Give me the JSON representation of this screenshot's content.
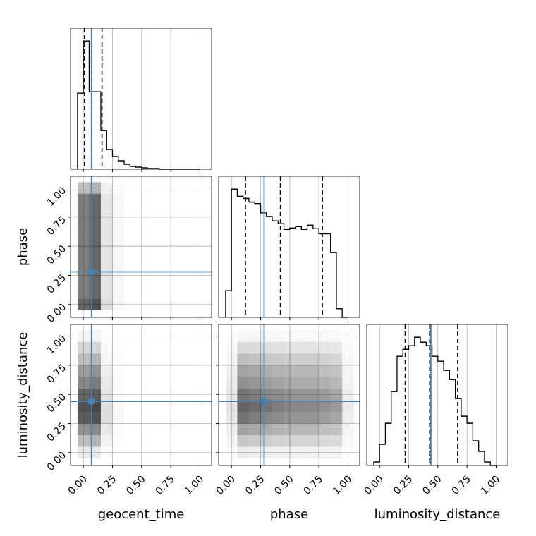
{
  "chart_data": {
    "type": "corner",
    "parameters": [
      "geocent_time",
      "phase",
      "luminosity_distance"
    ],
    "truths": [
      0.07,
      0.28,
      0.44
    ],
    "truth_color": "#4682b4",
    "lim": [
      -0.11,
      1.1
    ],
    "ticks": [
      {
        "value": 0,
        "label": "0.00"
      },
      {
        "value": 0.25,
        "label": "0.25"
      },
      {
        "value": 0.5,
        "label": "0.50"
      },
      {
        "value": 0.75,
        "label": "0.75"
      },
      {
        "value": 1,
        "label": "1.00"
      }
    ],
    "grid": true,
    "hists": [
      {
        "bins": [
          -0.05,
          0,
          0.05,
          0.1,
          0.15,
          0.2,
          0.25,
          0.3,
          0.35,
          0.4,
          0.45,
          0.5,
          0.55,
          0.6,
          0.65,
          0.7,
          0.75,
          0.8,
          0.85,
          0.9,
          0.95,
          1.0
        ],
        "counts": [
          108,
          182,
          110,
          110,
          55,
          28,
          18,
          12,
          7,
          4,
          3,
          2,
          1,
          1,
          0,
          0,
          0,
          0,
          0,
          0,
          0
        ],
        "quantiles": [
          0.01,
          0.07,
          0.16
        ]
      },
      {
        "bins": [
          -0.05,
          0,
          0.05,
          0.1,
          0.15,
          0.2,
          0.25,
          0.3,
          0.35,
          0.4,
          0.45,
          0.5,
          0.55,
          0.6,
          0.65,
          0.7,
          0.75,
          0.8,
          0.85,
          0.9,
          0.95,
          1.0
        ],
        "counts": [
          37,
          178,
          168,
          165,
          160,
          158,
          145,
          140,
          134,
          130,
          122,
          124,
          126,
          122,
          128,
          123,
          116,
          116,
          90,
          12,
          0
        ],
        "quantiles": [
          0.12,
          0.42,
          0.78
        ]
      },
      {
        "bins": [
          -0.05,
          0,
          0.05,
          0.1,
          0.15,
          0.2,
          0.25,
          0.3,
          0.35,
          0.4,
          0.45,
          0.5,
          0.55,
          0.6,
          0.65,
          0.7,
          0.75,
          0.8,
          0.85,
          0.9,
          0.95,
          1.0
        ],
        "counts": [
          5,
          30,
          60,
          105,
          155,
          165,
          170,
          182,
          175,
          170,
          155,
          148,
          135,
          122,
          95,
          70,
          60,
          35,
          20,
          5,
          0
        ],
        "quantiles": [
          0.22,
          0.43,
          0.67
        ]
      }
    ],
    "panels2d": [
      {
        "edges": [
          -0.05,
          0.05,
          0.15,
          0.25,
          0.35,
          0.45,
          0.55,
          0.65,
          0.75,
          0.85,
          0.95,
          1.05
        ],
        "density": [
          [
            0.7,
            0.8,
            0.15,
            0.03,
            0,
            0,
            0,
            0,
            0,
            0,
            0
          ],
          [
            0.6,
            0.7,
            0.12,
            0.03,
            0,
            0,
            0,
            0,
            0,
            0,
            0
          ],
          [
            0.6,
            0.7,
            0.12,
            0.03,
            0,
            0,
            0,
            0,
            0,
            0,
            0
          ],
          [
            0.6,
            0.7,
            0.12,
            0.03,
            0,
            0,
            0,
            0,
            0,
            0,
            0
          ],
          [
            0.6,
            0.7,
            0.12,
            0.03,
            0,
            0,
            0,
            0,
            0,
            0,
            0
          ],
          [
            0.6,
            0.7,
            0.12,
            0.03,
            0,
            0,
            0,
            0,
            0,
            0,
            0
          ],
          [
            0.6,
            0.7,
            0.12,
            0.03,
            0,
            0,
            0,
            0,
            0,
            0,
            0
          ],
          [
            0.6,
            0.7,
            0.12,
            0.03,
            0,
            0,
            0,
            0,
            0,
            0,
            0
          ],
          [
            0.6,
            0.7,
            0.12,
            0.03,
            0,
            0,
            0,
            0,
            0,
            0,
            0
          ],
          [
            0.6,
            0.7,
            0.12,
            0.03,
            0,
            0,
            0,
            0,
            0,
            0,
            0
          ],
          [
            0.3,
            0.35,
            0.06,
            0.01,
            0,
            0,
            0,
            0,
            0,
            0,
            0
          ]
        ]
      },
      {
        "edges": [
          -0.05,
          0.05,
          0.15,
          0.25,
          0.35,
          0.45,
          0.55,
          0.65,
          0.75,
          0.85,
          0.95,
          1.05
        ],
        "density": [
          [
            0.1,
            0.1,
            0.02,
            0,
            0,
            0,
            0,
            0,
            0,
            0,
            0
          ],
          [
            0.3,
            0.35,
            0.06,
            0.01,
            0,
            0,
            0,
            0,
            0,
            0,
            0
          ],
          [
            0.5,
            0.55,
            0.1,
            0.02,
            0,
            0,
            0,
            0,
            0,
            0,
            0
          ],
          [
            0.75,
            0.8,
            0.15,
            0.03,
            0,
            0,
            0,
            0,
            0,
            0,
            0
          ],
          [
            0.8,
            0.85,
            0.15,
            0.03,
            0,
            0,
            0,
            0,
            0,
            0,
            0
          ],
          [
            0.7,
            0.75,
            0.12,
            0.02,
            0,
            0,
            0,
            0,
            0,
            0,
            0
          ],
          [
            0.55,
            0.6,
            0.1,
            0.02,
            0,
            0,
            0,
            0,
            0,
            0,
            0
          ],
          [
            0.45,
            0.5,
            0.08,
            0.01,
            0,
            0,
            0,
            0,
            0,
            0,
            0
          ],
          [
            0.3,
            0.35,
            0.05,
            0.01,
            0,
            0,
            0,
            0,
            0,
            0,
            0
          ],
          [
            0.2,
            0.2,
            0.03,
            0,
            0,
            0,
            0,
            0,
            0,
            0,
            0
          ],
          [
            0.05,
            0.05,
            0.01,
            0,
            0,
            0,
            0,
            0,
            0,
            0,
            0
          ]
        ]
      },
      {
        "edges": [
          -0.05,
          0.05,
          0.15,
          0.25,
          0.35,
          0.45,
          0.55,
          0.65,
          0.75,
          0.85,
          0.95,
          1.05
        ],
        "density": [
          [
            0.02,
            0.09,
            0.08,
            0.08,
            0.07,
            0.07,
            0.07,
            0.07,
            0.06,
            0.06,
            0.01
          ],
          [
            0.05,
            0.26,
            0.24,
            0.23,
            0.21,
            0.2,
            0.2,
            0.2,
            0.18,
            0.17,
            0.03
          ],
          [
            0.08,
            0.43,
            0.4,
            0.38,
            0.35,
            0.33,
            0.33,
            0.33,
            0.3,
            0.28,
            0.05
          ],
          [
            0.11,
            0.64,
            0.6,
            0.56,
            0.53,
            0.49,
            0.49,
            0.49,
            0.45,
            0.41,
            0.08
          ],
          [
            0.13,
            0.72,
            0.68,
            0.64,
            0.6,
            0.55,
            0.55,
            0.55,
            0.51,
            0.47,
            0.09
          ],
          [
            0.11,
            0.64,
            0.6,
            0.56,
            0.53,
            0.49,
            0.49,
            0.49,
            0.45,
            0.41,
            0.08
          ],
          [
            0.09,
            0.51,
            0.48,
            0.45,
            0.42,
            0.39,
            0.39,
            0.39,
            0.36,
            0.33,
            0.06
          ],
          [
            0.08,
            0.43,
            0.4,
            0.38,
            0.35,
            0.33,
            0.33,
            0.33,
            0.3,
            0.28,
            0.05
          ],
          [
            0.05,
            0.3,
            0.28,
            0.26,
            0.25,
            0.23,
            0.23,
            0.23,
            0.21,
            0.19,
            0.04
          ],
          [
            0.03,
            0.17,
            0.16,
            0.15,
            0.14,
            0.13,
            0.13,
            0.13,
            0.12,
            0.11,
            0.02
          ],
          [
            0.01,
            0.04,
            0.04,
            0.04,
            0.04,
            0.03,
            0.03,
            0.03,
            0.03,
            0.03,
            0.01
          ]
        ]
      }
    ]
  }
}
